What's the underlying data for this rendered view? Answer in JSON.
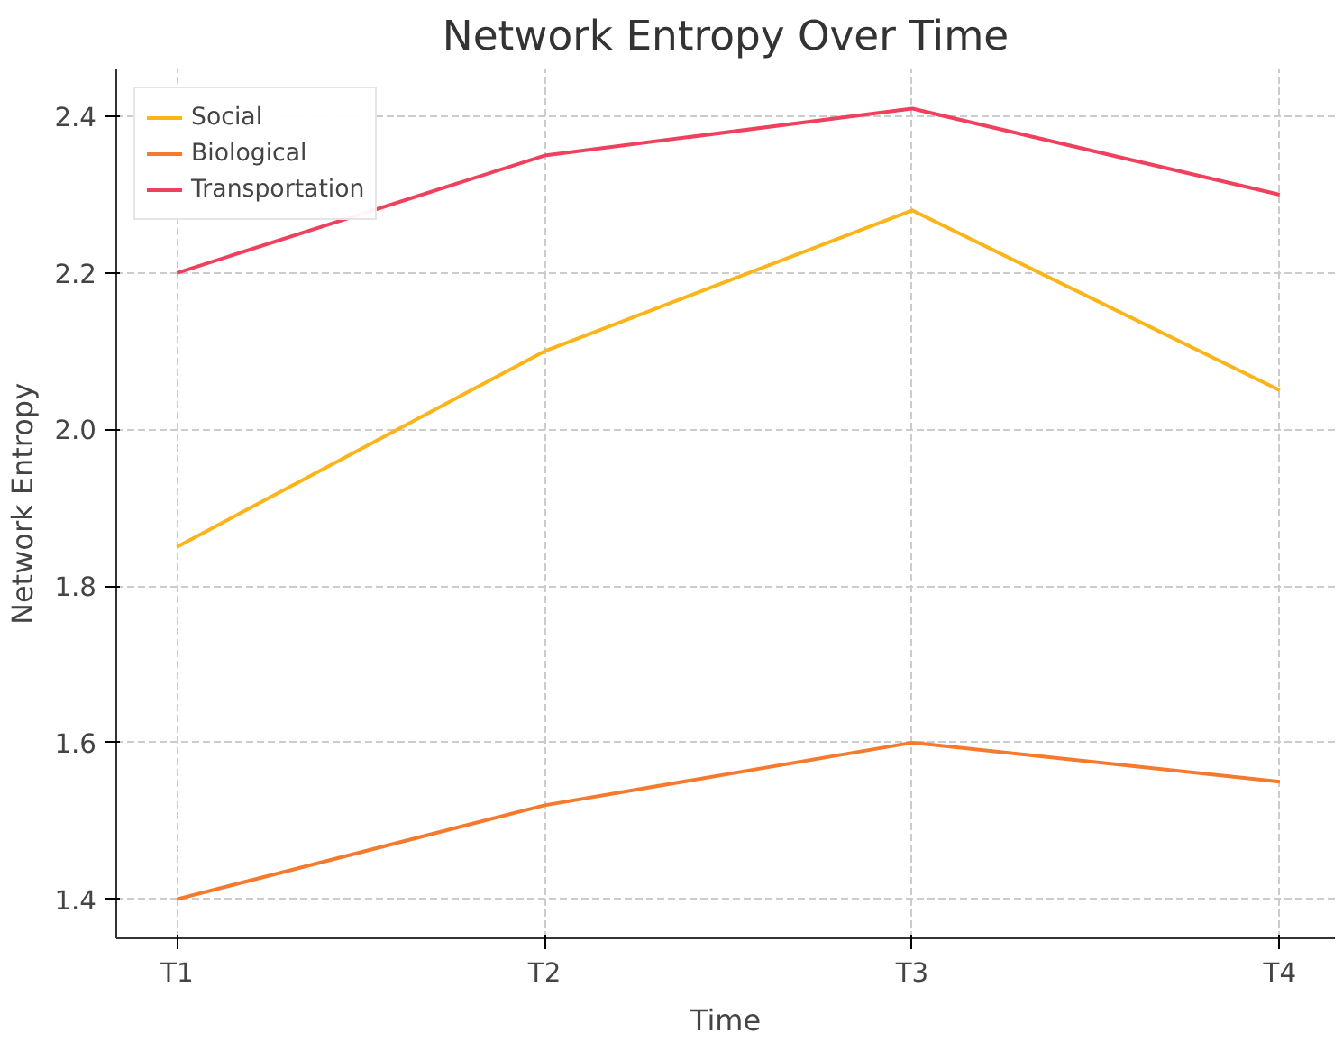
{
  "chart_data": {
    "type": "line",
    "title": "Network Entropy Over Time",
    "xlabel": "Time",
    "ylabel": "Network Entropy",
    "categories": [
      "T1",
      "T2",
      "T3",
      "T4"
    ],
    "series": [
      {
        "name": "Social",
        "color": "#fbb41a",
        "values": [
          1.85,
          2.1,
          2.28,
          2.05
        ]
      },
      {
        "name": "Biological",
        "color": "#f57a2e",
        "values": [
          1.4,
          1.52,
          1.6,
          1.55
        ]
      },
      {
        "name": "Transportation",
        "color": "#f0405e",
        "values": [
          2.2,
          2.35,
          2.41,
          2.3
        ]
      }
    ],
    "ylim": [
      1.35,
      2.46
    ],
    "yticks": [
      1.4,
      1.6,
      1.8,
      {
        "value": 2,
        "label": "2.0"
      },
      2.2,
      2.4
    ],
    "grid": true,
    "legend": "top left",
    "line_style": "solid"
  }
}
